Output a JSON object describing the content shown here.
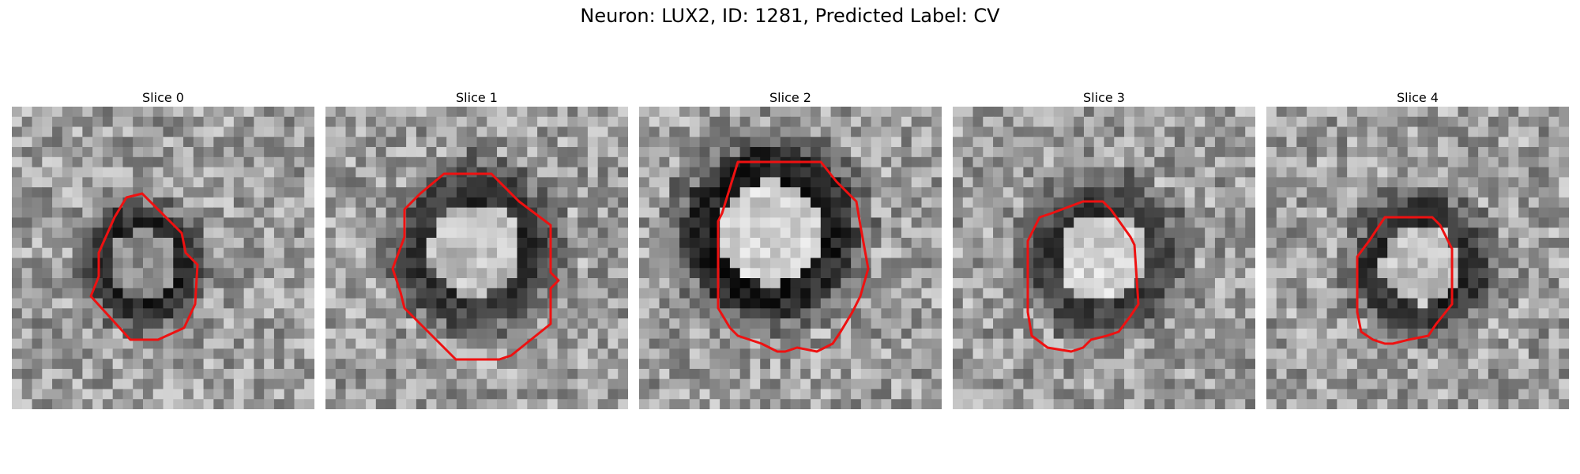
{
  "figure": {
    "title": "Neuron: LUX2, ID: 1281, Predicted Label: CV"
  },
  "panels": [
    {
      "title": "Slice 0"
    },
    {
      "title": "Slice 1"
    },
    {
      "title": "Slice 2"
    },
    {
      "title": "Slice 3"
    },
    {
      "title": "Slice 4"
    }
  ],
  "style": {
    "contour_color": "#ee1111",
    "colormap": "grayscale"
  }
}
